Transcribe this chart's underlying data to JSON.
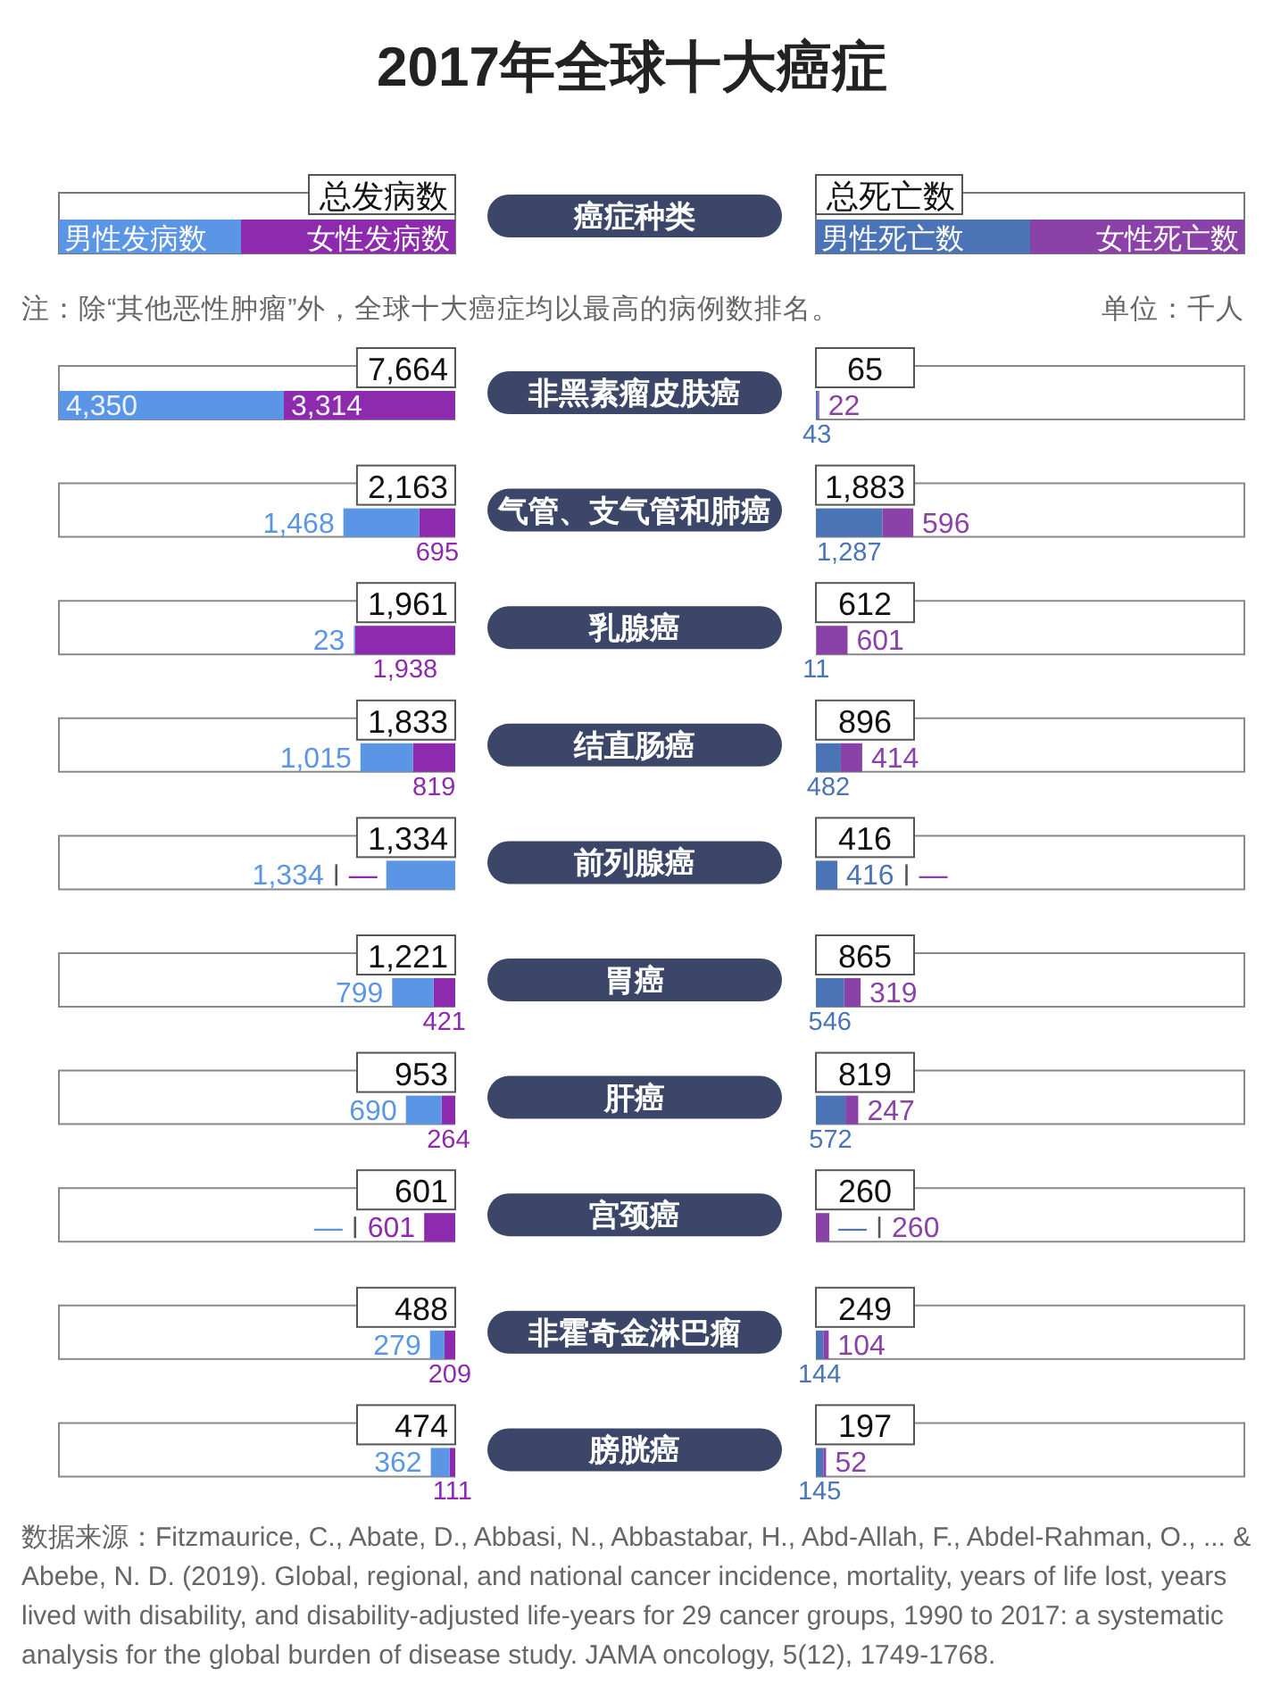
{
  "chart_data": [
    {
      "type": "bar",
      "orientation": "horizontal",
      "stacked": true,
      "title": "2017年全球十大癌症",
      "ylabel": "癌症种类",
      "legend": "top",
      "legend_title": "总发病数",
      "categories": [
        "非黑素瘤皮肤癌",
        "气管、支气管和肺癌",
        "乳腺癌",
        "结直肠癌",
        "前列腺癌",
        "胃癌",
        "肝癌",
        "宫颈癌",
        "非霍奇金淋巴瘤",
        "膀胱癌"
      ],
      "series": [
        {
          "name": "女性发病数",
          "color": "#8e2aae",
          "values": [
            3314,
            695,
            1938,
            819,
            null,
            421,
            264,
            601,
            209,
            111
          ],
          "value_labels": [
            "3,314",
            "695",
            "1,938",
            "819",
            "—",
            "421",
            "264",
            "601",
            "209",
            "111"
          ]
        },
        {
          "name": "男性发病数",
          "color": "#5b96e6",
          "values": [
            4350,
            1468,
            23,
            1015,
            1334,
            799,
            690,
            null,
            279,
            362
          ],
          "value_labels": [
            "4,350",
            "1,468",
            "23",
            "1,015",
            "1,334",
            "799",
            "690",
            "—",
            "279",
            "362"
          ]
        }
      ],
      "totals": [
        "7,664",
        "2,163",
        "1,961",
        "1,833",
        "1,334",
        "1,221",
        "953",
        "601",
        "488",
        "474"
      ],
      "annotations": [
        "注：除“其他恶性肿瘤”外，全球十大癌症均以最高的病例数排名。",
        "单位：千人",
        "数据来源：Fitzmaurice, C., Abate, D., Abbasi, N., Abbastabar, H., Abd-Allah, F., Abdel-Rahman, O., ... & Abebe, N. D. (2019). Global, regional, and national cancer incidence, mortality, years of life lost, years lived with disability, and disability-adjusted life-years for 29 cancer groups, 1990 to 2017: a systematic analysis for the global burden of disease study. JAMA oncology, 5(12), 1749-1768."
      ]
    },
    {
      "type": "bar",
      "orientation": "horizontal",
      "stacked": true,
      "legend": "top",
      "legend_title": "总死亡数",
      "tick_labels": false,
      "categories": [
        "非黑素瘤皮肤癌",
        "气管、支气管和肺癌",
        "乳腺癌",
        "结直肠癌",
        "前列腺癌",
        "胃癌",
        "肝癌",
        "宫颈癌",
        "非霍奇金淋巴瘤",
        "膀胱癌"
      ],
      "series": [
        {
          "name": "男性死亡数",
          "color": "#4a74b5",
          "values": [
            43,
            1287,
            11,
            482,
            416,
            546,
            572,
            null,
            144,
            145
          ],
          "value_labels": [
            "43",
            "1,287",
            "11",
            "482",
            "416",
            "546",
            "572",
            "—",
            "144",
            "145"
          ]
        },
        {
          "name": "女性死亡数",
          "color": "#8a42a8",
          "values": [
            22,
            596,
            601,
            414,
            null,
            319,
            247,
            260,
            104,
            52
          ],
          "value_labels": [
            "22",
            "596",
            "601",
            "414",
            "—",
            "319",
            "247",
            "260",
            "104",
            "52"
          ]
        }
      ],
      "totals": [
        "65",
        "1,883",
        "612",
        "896",
        "416",
        "865",
        "819",
        "260",
        "249",
        "197"
      ]
    }
  ]
}
